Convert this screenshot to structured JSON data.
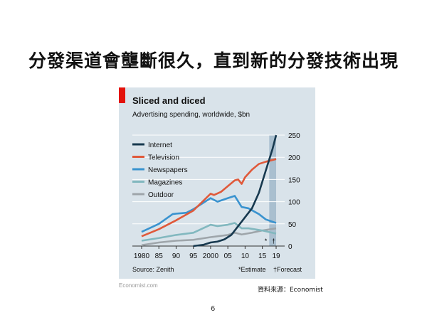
{
  "slide": {
    "title": "分發渠道會壟斷很久，直到新的分發技術出現",
    "source_note": "資料來源：Economist",
    "page_number": "6"
  },
  "chart_data": {
    "type": "line",
    "title": "Sliced and diced",
    "subtitle": "Advertising spending, worldwide, $bn",
    "source": "Source: Zenith",
    "footnote_estimate": "*Estimate",
    "footnote_forecast": "†Forecast",
    "estimate_marker": "*",
    "forecast_marker": "†",
    "credit": "Economist.com",
    "xlim": [
      1980,
      2019
    ],
    "ylim": [
      0,
      250
    ],
    "x_ticks": [
      {
        "v": 1980,
        "l": "1980"
      },
      {
        "v": 1985,
        "l": "85"
      },
      {
        "v": 1990,
        "l": "90"
      },
      {
        "v": 1995,
        "l": "95"
      },
      {
        "v": 2000,
        "l": "2000"
      },
      {
        "v": 2005,
        "l": "05"
      },
      {
        "v": 2010,
        "l": "10"
      },
      {
        "v": 2015,
        "l": "15"
      },
      {
        "v": 2019,
        "l": "19"
      }
    ],
    "y_ticks": [
      0,
      50,
      100,
      150,
      200,
      250
    ],
    "forecast_range": [
      2017,
      2019
    ],
    "legend_position": "top-left",
    "series": [
      {
        "name": "Internet",
        "color": "#17394f",
        "points": [
          [
            1995,
            0
          ],
          [
            1996,
            1
          ],
          [
            1998,
            3
          ],
          [
            2000,
            8
          ],
          [
            2002,
            10
          ],
          [
            2004,
            15
          ],
          [
            2006,
            25
          ],
          [
            2008,
            45
          ],
          [
            2010,
            65
          ],
          [
            2012,
            85
          ],
          [
            2014,
            120
          ],
          [
            2016,
            170
          ],
          [
            2018,
            220
          ],
          [
            2019,
            250
          ]
        ]
      },
      {
        "name": "Television",
        "color": "#e0593a",
        "points": [
          [
            1980,
            22
          ],
          [
            1985,
            38
          ],
          [
            1990,
            58
          ],
          [
            1995,
            80
          ],
          [
            2000,
            118
          ],
          [
            2001,
            115
          ],
          [
            2003,
            122
          ],
          [
            2005,
            135
          ],
          [
            2007,
            148
          ],
          [
            2008,
            150
          ],
          [
            2009,
            140
          ],
          [
            2010,
            155
          ],
          [
            2012,
            172
          ],
          [
            2014,
            185
          ],
          [
            2016,
            190
          ],
          [
            2019,
            196
          ]
        ]
      },
      {
        "name": "Newspapers",
        "color": "#3a93cf",
        "points": [
          [
            1980,
            32
          ],
          [
            1985,
            50
          ],
          [
            1989,
            72
          ],
          [
            1990,
            73
          ],
          [
            1993,
            75
          ],
          [
            1995,
            83
          ],
          [
            2000,
            108
          ],
          [
            2002,
            100
          ],
          [
            2005,
            108
          ],
          [
            2007,
            113
          ],
          [
            2009,
            88
          ],
          [
            2011,
            85
          ],
          [
            2014,
            72
          ],
          [
            2016,
            60
          ],
          [
            2019,
            52
          ]
        ]
      },
      {
        "name": "Magazines",
        "color": "#82b8bf",
        "points": [
          [
            1980,
            12
          ],
          [
            1985,
            18
          ],
          [
            1990,
            25
          ],
          [
            1995,
            30
          ],
          [
            2000,
            48
          ],
          [
            2002,
            45
          ],
          [
            2005,
            48
          ],
          [
            2007,
            52
          ],
          [
            2009,
            40
          ],
          [
            2011,
            40
          ],
          [
            2015,
            35
          ],
          [
            2019,
            28
          ]
        ]
      },
      {
        "name": "Outdoor",
        "color": "#9ea5aa",
        "points": [
          [
            1980,
            2
          ],
          [
            1985,
            8
          ],
          [
            1990,
            12
          ],
          [
            1995,
            14
          ],
          [
            2000,
            20
          ],
          [
            2005,
            25
          ],
          [
            2007,
            30
          ],
          [
            2009,
            26
          ],
          [
            2012,
            30
          ],
          [
            2015,
            35
          ],
          [
            2019,
            40
          ]
        ]
      }
    ]
  }
}
